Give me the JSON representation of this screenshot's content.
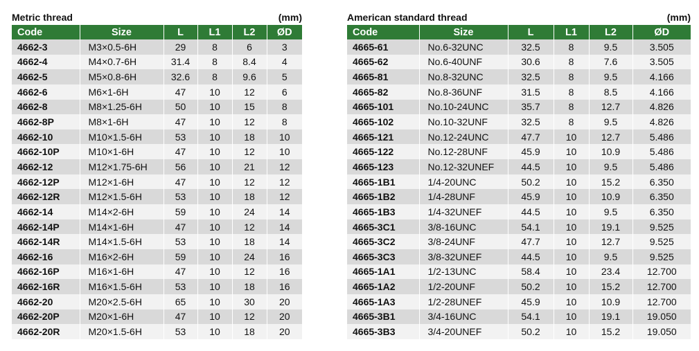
{
  "metric": {
    "title": "Metric thread",
    "unit": "(mm)",
    "headers": [
      "Code",
      "Size",
      "L",
      "L1",
      "L2",
      "ØD"
    ],
    "rows": [
      [
        "4662-3",
        "M3×0.5-6H",
        "29",
        "8",
        "6",
        "3"
      ],
      [
        "4662-4",
        "M4×0.7-6H",
        "31.4",
        "8",
        "8.4",
        "4"
      ],
      [
        "4662-5",
        "M5×0.8-6H",
        "32.6",
        "8",
        "9.6",
        "5"
      ],
      [
        "4662-6",
        "M6×1-6H",
        "47",
        "10",
        "12",
        "6"
      ],
      [
        "4662-8",
        "M8×1.25-6H",
        "50",
        "10",
        "15",
        "8"
      ],
      [
        "4662-8P",
        "M8×1-6H",
        "47",
        "10",
        "12",
        "8"
      ],
      [
        "4662-10",
        "M10×1.5-6H",
        "53",
        "10",
        "18",
        "10"
      ],
      [
        "4662-10P",
        "M10×1-6H",
        "47",
        "10",
        "12",
        "10"
      ],
      [
        "4662-12",
        "M12×1.75-6H",
        "56",
        "10",
        "21",
        "12"
      ],
      [
        "4662-12P",
        "M12×1-6H",
        "47",
        "10",
        "12",
        "12"
      ],
      [
        "4662-12R",
        "M12×1.5-6H",
        "53",
        "10",
        "18",
        "12"
      ],
      [
        "4662-14",
        "M14×2-6H",
        "59",
        "10",
        "24",
        "14"
      ],
      [
        "4662-14P",
        "M14×1-6H",
        "47",
        "10",
        "12",
        "14"
      ],
      [
        "4662-14R",
        "M14×1.5-6H",
        "53",
        "10",
        "18",
        "14"
      ],
      [
        "4662-16",
        "M16×2-6H",
        "59",
        "10",
        "24",
        "16"
      ],
      [
        "4662-16P",
        "M16×1-6H",
        "47",
        "10",
        "12",
        "16"
      ],
      [
        "4662-16R",
        "M16×1.5-6H",
        "53",
        "10",
        "18",
        "16"
      ],
      [
        "4662-20",
        "M20×2.5-6H",
        "65",
        "10",
        "30",
        "20"
      ],
      [
        "4662-20P",
        "M20×1-6H",
        "47",
        "10",
        "12",
        "20"
      ],
      [
        "4662-20R",
        "M20×1.5-6H",
        "53",
        "10",
        "18",
        "20"
      ]
    ]
  },
  "american": {
    "title": "American standard thread",
    "unit": "(mm)",
    "headers": [
      "Code",
      "Size",
      "L",
      "L1",
      "L2",
      "ØD"
    ],
    "rows": [
      [
        "4665-61",
        "No.6-32UNC",
        "32.5",
        "8",
        "9.5",
        "3.505"
      ],
      [
        "4665-62",
        "No.6-40UNF",
        "30.6",
        "8",
        "7.6",
        "3.505"
      ],
      [
        "4665-81",
        "No.8-32UNC",
        "32.5",
        "8",
        "9.5",
        "4.166"
      ],
      [
        "4665-82",
        "No.8-36UNF",
        "31.5",
        "8",
        "8.5",
        "4.166"
      ],
      [
        "4665-101",
        "No.10-24UNC",
        "35.7",
        "8",
        "12.7",
        "4.826"
      ],
      [
        "4665-102",
        "No.10-32UNF",
        "32.5",
        "8",
        "9.5",
        "4.826"
      ],
      [
        "4665-121",
        "No.12-24UNC",
        "47.7",
        "10",
        "12.7",
        "5.486"
      ],
      [
        "4665-122",
        "No.12-28UNF",
        "45.9",
        "10",
        "10.9",
        "5.486"
      ],
      [
        "4665-123",
        "No.12-32UNEF",
        "44.5",
        "10",
        "9.5",
        "5.486"
      ],
      [
        "4665-1B1",
        "1/4-20UNC",
        "50.2",
        "10",
        "15.2",
        "6.350"
      ],
      [
        "4665-1B2",
        "1/4-28UNF",
        "45.9",
        "10",
        "10.9",
        "6.350"
      ],
      [
        "4665-1B3",
        "1/4-32UNEF",
        "44.5",
        "10",
        "9.5",
        "6.350"
      ],
      [
        "4665-3C1",
        "3/8-16UNC",
        "54.1",
        "10",
        "19.1",
        "9.525"
      ],
      [
        "4665-3C2",
        "3/8-24UNF",
        "47.7",
        "10",
        "12.7",
        "9.525"
      ],
      [
        "4665-3C3",
        "3/8-32UNEF",
        "44.5",
        "10",
        "9.5",
        "9.525"
      ],
      [
        "4665-1A1",
        "1/2-13UNC",
        "58.4",
        "10",
        "23.4",
        "12.700"
      ],
      [
        "4665-1A2",
        "1/2-20UNF",
        "50.2",
        "10",
        "15.2",
        "12.700"
      ],
      [
        "4665-1A3",
        "1/2-28UNEF",
        "45.9",
        "10",
        "10.9",
        "12.700"
      ],
      [
        "4665-3B1",
        "3/4-16UNC",
        "54.1",
        "10",
        "19.1",
        "19.050"
      ],
      [
        "4665-3B3",
        "3/4-20UNEF",
        "50.2",
        "10",
        "15.2",
        "19.050"
      ]
    ]
  }
}
